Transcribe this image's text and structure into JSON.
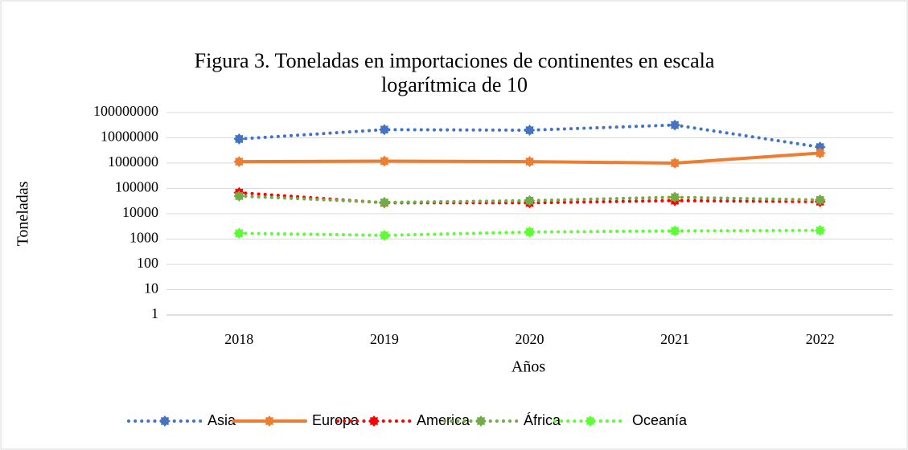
{
  "chart_data": {
    "type": "line",
    "title": [
      "Figura 3. Toneladas en importaciones de continentes en escala",
      "logarítmica de 10"
    ],
    "x_label": "Años",
    "y_label": "Toneladas",
    "categories": [
      "2018",
      "2019",
      "2020",
      "2021",
      "2022"
    ],
    "series": [
      {
        "name": "Asia",
        "color": "#4472c4",
        "dash": "dotted",
        "values": [
          9000000,
          21000000,
          20000000,
          32000000,
          4300000
        ]
      },
      {
        "name": "Europa",
        "color": "#ed7d31",
        "dash": "solid",
        "values": [
          1150000,
          1200000,
          1150000,
          1000000,
          2500000
        ]
      },
      {
        "name": "America",
        "color": "#ff0000",
        "dash": "dotted",
        "values": [
          68000,
          27000,
          27000,
          33000,
          30000
        ]
      },
      {
        "name": "África",
        "color": "#70ad47",
        "dash": "dotted",
        "values": [
          50000,
          28000,
          33000,
          45000,
          35000
        ]
      },
      {
        "name": "Oceanía",
        "color": "#5cff33",
        "dash": "dotted",
        "values": [
          1700,
          1400,
          1900,
          2100,
          2200
        ]
      }
    ],
    "log_scale": true,
    "ylim": [
      1,
      100000000
    ],
    "yticks": [
      1,
      10,
      100,
      1000,
      10000,
      100000,
      1000000,
      10000000,
      100000000
    ],
    "grid": true,
    "legend": "bottom"
  }
}
